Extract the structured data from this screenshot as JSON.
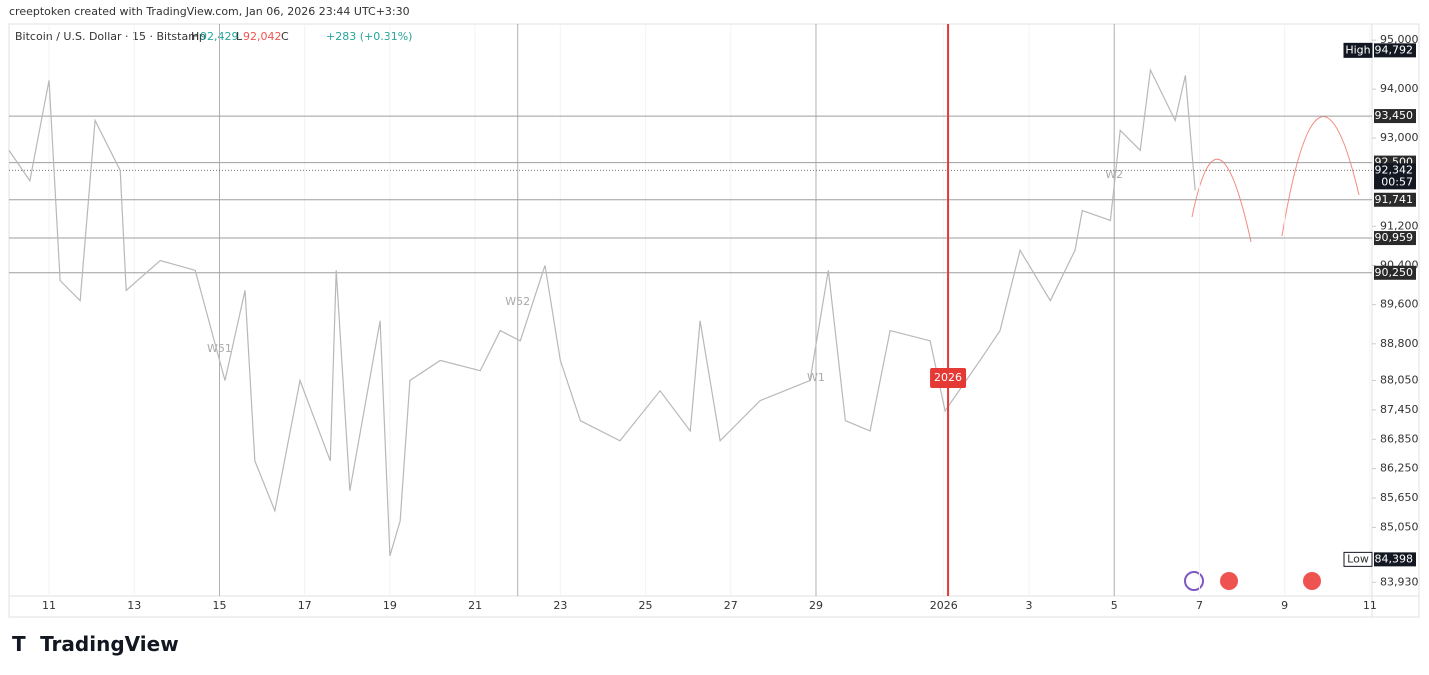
{
  "header": "creeptoken created with TradingView.com, Jan 06, 2026 23:44 UTC+3:30",
  "footer": "TradingView",
  "chart_data": {
    "type": "line",
    "legend": {
      "symbol": "Bitcoin / U.S. Dollar · 15 · Bitstamp",
      "h_label": "H",
      "high": "92,429",
      "l_label": "L",
      "low": "92,042",
      "c_label": "C",
      "change": "+283 (+0.31%)"
    },
    "series": [
      {
        "color": "#b8b8b8",
        "x": [
          10.06,
          10.55,
          11,
          11.26,
          11.73,
          12.08,
          12.67,
          12.81,
          13.61,
          14.43,
          15.13,
          15.6,
          15.83,
          16.3,
          16.89,
          17.6,
          17.74,
          18.06,
          18.77,
          19,
          19.24,
          19.47,
          20.18,
          21.12,
          21.59,
          22.06,
          22.64,
          23,
          23.47,
          24.4,
          25.34,
          26.05,
          26.28,
          26.75,
          27.69,
          28.86,
          29.29,
          29.69,
          30.27,
          30.74,
          31.68,
          32.03,
          32.85,
          33.32,
          33.79,
          34.5,
          35.08,
          35.25,
          35.91,
          36.14,
          36.61,
          36.85,
          37.2,
          37.43,
          37.67,
          37.9
        ],
        "values": [
          92750,
          92130,
          94180,
          90090,
          89680,
          93360,
          92340,
          89890,
          90500,
          90300,
          88050,
          89890,
          86410,
          85390,
          88050,
          86410,
          90300,
          85800,
          89270,
          84470,
          85180,
          88050,
          88460,
          88250,
          89070,
          88860,
          90400,
          88460,
          87230,
          86820,
          87840,
          87020,
          89270,
          86820,
          87640,
          88050,
          90300,
          87230,
          87020,
          89070,
          88860,
          87430,
          88460,
          89070,
          90710,
          89680,
          90710,
          91520,
          91320,
          93160,
          92750,
          94390,
          93770,
          93360,
          94280,
          91930
        ]
      }
    ],
    "xlim": [
      10.06,
      42.05
    ],
    "xticks": [
      11,
      13,
      15,
      17,
      19,
      21,
      23,
      25,
      27,
      29,
      {
        "value": 32,
        "label": "2026"
      },
      {
        "value": 34,
        "label": "3"
      },
      {
        "value": 36,
        "label": "5"
      },
      {
        "value": 38,
        "label": "7"
      },
      {
        "value": 40,
        "label": "9"
      },
      {
        "value": 42,
        "label": "11"
      }
    ],
    "ylim": [
      83650,
      95330
    ],
    "yticks": [
      {
        "value": 95000,
        "label": "95,000"
      },
      {
        "value": 94000,
        "label": "94,000"
      },
      {
        "value": 93000,
        "label": "93,000"
      },
      {
        "value": 91200,
        "label": "91,200"
      },
      {
        "value": 90400,
        "label": "90,400"
      },
      {
        "value": 89600,
        "label": "89,600"
      },
      {
        "value": 88800,
        "label": "88,800"
      },
      {
        "value": 88050,
        "label": "88,050"
      },
      {
        "value": 87450,
        "label": "87,450"
      },
      {
        "value": 86850,
        "label": "86,850"
      },
      {
        "value": 86250,
        "label": "86,250"
      },
      {
        "value": 85650,
        "label": "85,650"
      },
      {
        "value": 85050,
        "label": "85,050"
      },
      {
        "value": 83930,
        "label": "83,930"
      }
    ],
    "price_levels": [
      {
        "value": 93450,
        "label": "93,450"
      },
      {
        "value": 92500,
        "label": "92,500"
      },
      {
        "value": 91741,
        "label": "91,741"
      },
      {
        "value": 90959,
        "label": "90,959"
      },
      {
        "value": 90250,
        "label": "90,250"
      }
    ],
    "current_price": {
      "value": 92342,
      "label": "92,342",
      "countdown": "00:57"
    },
    "high": {
      "title": "High",
      "value": 94792,
      "label": "94,792"
    },
    "low": {
      "title": "Low",
      "value": 84398,
      "label": "84,398"
    },
    "week_lines": [
      {
        "x": 15,
        "label": "W51"
      },
      {
        "x": 22,
        "label": "W52"
      },
      {
        "x": 29,
        "label": "W1"
      },
      {
        "x": 36,
        "label": "W2"
      }
    ],
    "year_line": {
      "x": 32.1,
      "label": "2026",
      "color": "#e53935"
    }
  }
}
